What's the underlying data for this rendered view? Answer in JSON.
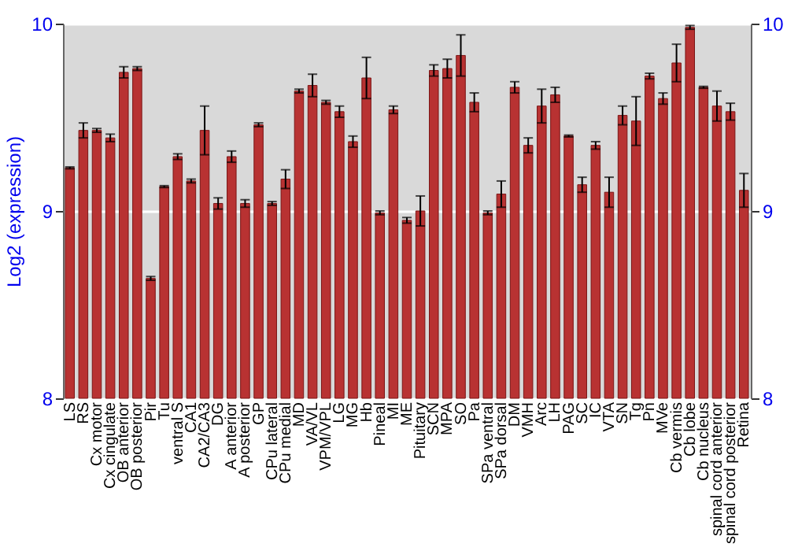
{
  "chart_data": {
    "type": "bar",
    "ylabel": "Log2 (expression)",
    "categories": [
      "LS",
      "RS",
      "Cx motor",
      "Cx cingulate",
      "OB anterior",
      "OB posterior",
      "Pir",
      "Tu",
      "ventral S",
      "CA1",
      "CA2/CA3",
      "DG",
      "A anterior",
      "A posterior",
      "GP",
      "CPu lateral",
      "CPu medial",
      "MD",
      "VA/VL",
      "VPM/VPL",
      "LG",
      "MG",
      "Hb",
      "Pineal",
      "MI",
      "ME",
      "Pituitary",
      "SCN",
      "MPA",
      "SO",
      "Pa",
      "SPa ventral",
      "SPa dorsal",
      "DM",
      "VMH",
      "Arc",
      "LH",
      "PAG",
      "SC",
      "IC",
      "VTA",
      "SN",
      "Tg",
      "Pn",
      "MVe",
      "Cb vermis",
      "Cb lobe",
      "Cb nucleus",
      "spinal cord anterior",
      "spinal cord posterior",
      "Retina"
    ],
    "series": [
      {
        "color": "#b83232",
        "values": [
          9.23,
          9.43,
          9.43,
          9.39,
          9.74,
          9.76,
          8.64,
          9.13,
          9.29,
          9.16,
          9.43,
          9.04,
          9.29,
          9.04,
          9.46,
          9.04,
          9.17,
          9.64,
          9.67,
          9.58,
          9.53,
          9.37,
          9.71,
          8.99,
          9.54,
          8.95,
          9.0,
          9.75,
          9.76,
          9.83,
          9.58,
          8.99,
          9.09,
          9.66,
          9.35,
          9.56,
          9.62,
          9.4,
          9.14,
          9.35,
          9.1,
          9.51,
          9.48,
          9.72,
          9.6,
          9.79,
          9.98,
          9.66,
          9.56,
          9.53,
          9.11
        ],
        "errors": [
          0.005,
          0.04,
          0.01,
          0.02,
          0.03,
          0.01,
          0.01,
          0.005,
          0.015,
          0.01,
          0.13,
          0.03,
          0.03,
          0.02,
          0.01,
          0.01,
          0.05,
          0.01,
          0.06,
          0.01,
          0.03,
          0.03,
          0.11,
          0.01,
          0.02,
          0.015,
          0.08,
          0.03,
          0.05,
          0.11,
          0.05,
          0.01,
          0.07,
          0.03,
          0.04,
          0.09,
          0.04,
          0.005,
          0.04,
          0.02,
          0.08,
          0.05,
          0.13,
          0.015,
          0.03,
          0.1,
          0.01,
          0.005,
          0.08,
          0.045,
          0.09
        ]
      }
    ],
    "ylim": [
      8,
      10
    ],
    "yticks": [
      8,
      9,
      10
    ],
    "y2lim": [
      8,
      10
    ],
    "y2ticks": [
      8,
      9,
      10
    ],
    "grid": "y"
  }
}
